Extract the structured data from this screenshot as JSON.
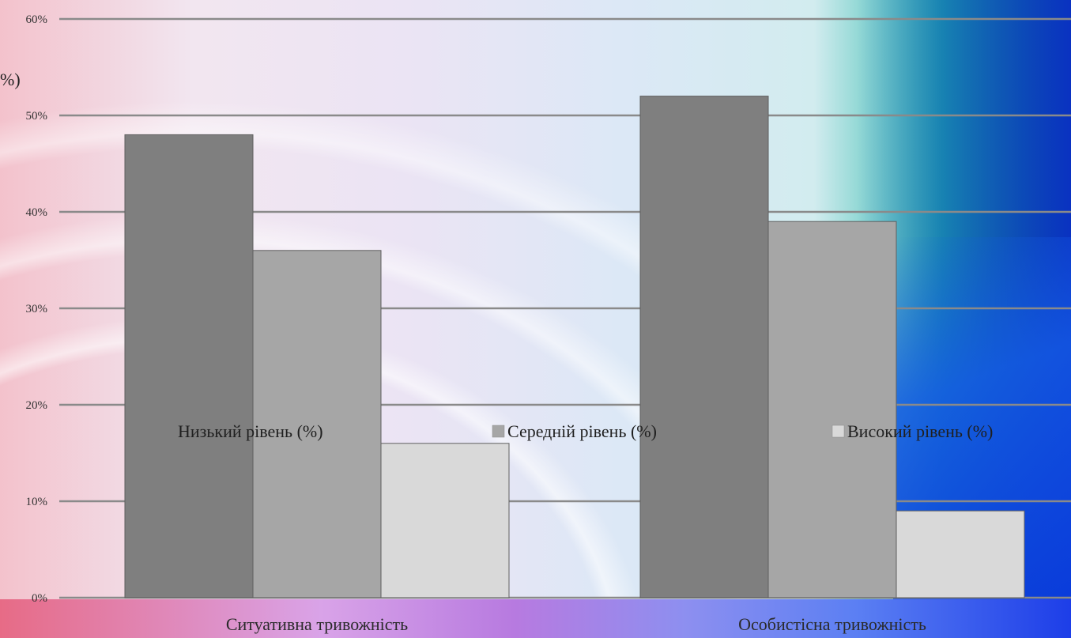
{
  "chart_data": {
    "type": "bar",
    "categories": [
      "Ситуативна тривожність",
      "Особистісна тривожність"
    ],
    "series": [
      {
        "name": "Низький рівень (%)",
        "values": [
          48,
          52
        ],
        "color": "#7f7f7f"
      },
      {
        "name": "Середній рівень (%)",
        "values": [
          36,
          39
        ],
        "color": "#a6a6a6"
      },
      {
        "name": "Високий рівень (%)",
        "values": [
          16,
          9
        ],
        "color": "#d9d9d9"
      }
    ],
    "yticks": [
      "0%",
      "10%",
      "20%",
      "30%",
      "40%",
      "50%",
      "60%"
    ],
    "ylim": [
      0,
      60
    ],
    "ylabel_fragment": "%)",
    "legend_position": "inside-middle",
    "grid": true
  }
}
